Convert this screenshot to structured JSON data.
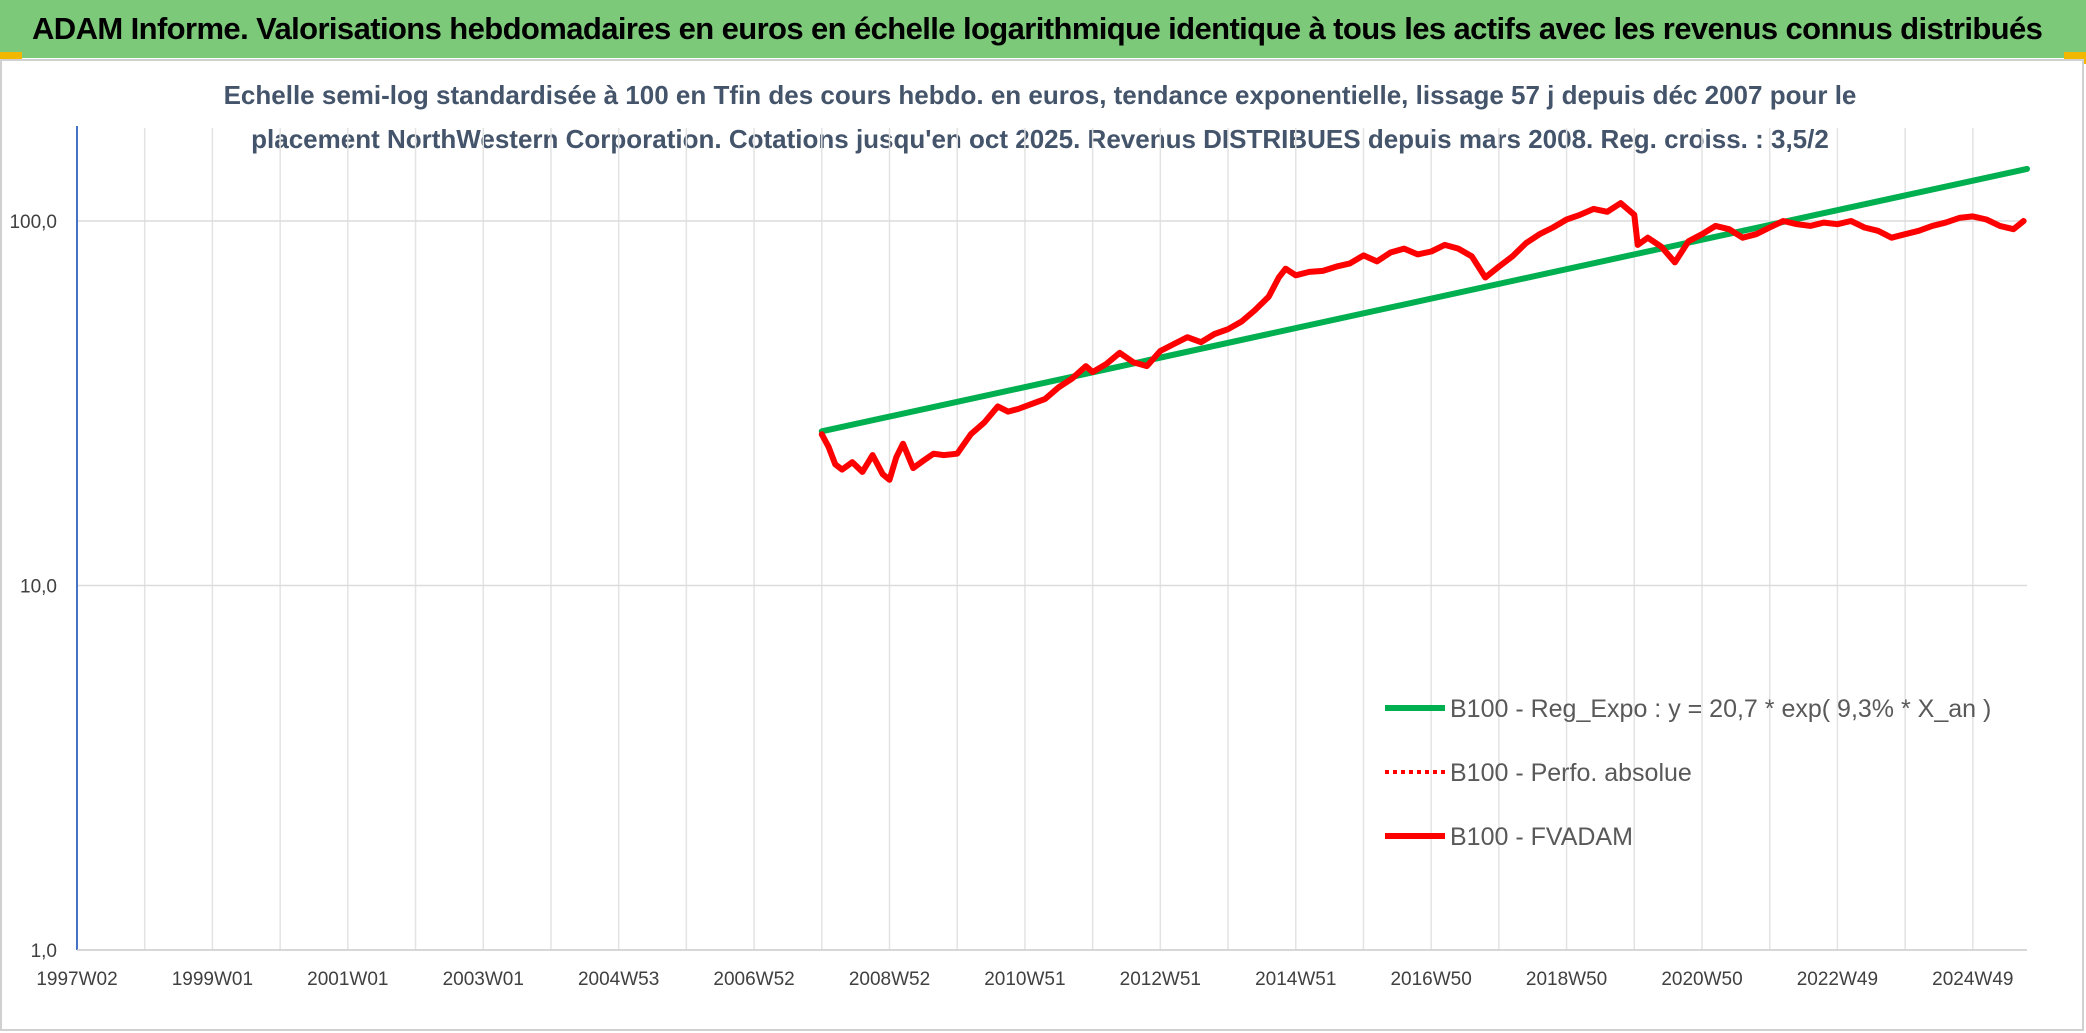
{
  "header": {
    "title": "ADAM Informe. Valorisations hebdomadaires en euros en échelle logarithmique identique à tous les actifs avec les revenus connus distribués",
    "background": "#7dc97a"
  },
  "chart_data": {
    "type": "line",
    "title_lines": [
      "Echelle semi-log standardisée à 100 en Tfin des cours hebdo. en euros, tendance exponentielle, lissage 57 j depuis déc 2007 pour le",
      "placement NorthWestern Corporation. Cotations jusqu'en oct 2025. Revenus DISTRIBUES depuis mars 2008. Reg. croiss. : 3,5/2"
    ],
    "y_scale": "log",
    "ylim": [
      1,
      180
    ],
    "y_ticks": [
      {
        "value": 1,
        "label": "1,0"
      },
      {
        "value": 10,
        "label": "10,0"
      },
      {
        "value": 100,
        "label": "100,0"
      }
    ],
    "x_ticks": [
      "1997W02",
      "1999W01",
      "2001W01",
      "2003W01",
      "2004W53",
      "2006W52",
      "2008W52",
      "2010W51",
      "2012W51",
      "2014W51",
      "2016W50",
      "2018W50",
      "2020W50",
      "2022W49",
      "2024W49"
    ],
    "x_tick_years": [
      1997.0,
      1999.0,
      2001.0,
      2003.0,
      2005.0,
      2007.0,
      2009.0,
      2011.0,
      2013.0,
      2015.0,
      2017.0,
      2019.0,
      2021.0,
      2023.0,
      2025.0
    ],
    "xlim": [
      1997.0,
      2025.8
    ],
    "grid": true,
    "legend_position": "bottom-right",
    "series": [
      {
        "name": "B100 - Reg_Expo : y = 20,7 * exp( 9,3% *  X_an )",
        "color": "#00b050",
        "style": "solid",
        "x": [
          2008.0,
          2025.8
        ],
        "y": [
          26.5,
          139
        ]
      },
      {
        "name": "B100 - Perfo. absolue",
        "color": "#ff0000",
        "style": "dotted",
        "x": [],
        "y": []
      },
      {
        "name": "B100 - FVADAM",
        "color": "#ff0000",
        "style": "solid",
        "x": [
          2008.0,
          2008.1,
          2008.2,
          2008.3,
          2008.45,
          2008.6,
          2008.75,
          2008.9,
          2009.0,
          2009.1,
          2009.2,
          2009.35,
          2009.5,
          2009.65,
          2009.8,
          2010.0,
          2010.2,
          2010.4,
          2010.6,
          2010.75,
          2010.9,
          2011.1,
          2011.3,
          2011.5,
          2011.7,
          2011.9,
          2012.0,
          2012.2,
          2012.4,
          2012.6,
          2012.8,
          2013.0,
          2013.2,
          2013.4,
          2013.6,
          2013.8,
          2014.0,
          2014.2,
          2014.4,
          2014.6,
          2014.75,
          2014.85,
          2015.0,
          2015.2,
          2015.4,
          2015.6,
          2015.8,
          2016.0,
          2016.2,
          2016.4,
          2016.6,
          2016.8,
          2017.0,
          2017.2,
          2017.4,
          2017.6,
          2017.8,
          2018.0,
          2018.2,
          2018.4,
          2018.6,
          2018.8,
          2019.0,
          2019.2,
          2019.4,
          2019.6,
          2019.8,
          2020.0,
          2020.05,
          2020.2,
          2020.4,
          2020.6,
          2020.8,
          2021.0,
          2021.2,
          2021.4,
          2021.6,
          2021.8,
          2022.0,
          2022.2,
          2022.4,
          2022.6,
          2022.8,
          2023.0,
          2023.2,
          2023.4,
          2023.6,
          2023.8,
          2024.0,
          2024.2,
          2024.4,
          2024.6,
          2024.8,
          2025.0,
          2025.2,
          2025.4,
          2025.6,
          2025.75
        ],
        "y": [
          26.0,
          24.0,
          21.5,
          20.8,
          21.8,
          20.5,
          22.8,
          20.2,
          19.5,
          22.5,
          24.5,
          21.0,
          22.0,
          23.0,
          22.8,
          23.0,
          26.0,
          28.0,
          31.0,
          30.0,
          30.5,
          31.5,
          32.5,
          35.0,
          37.0,
          40.0,
          38.5,
          40.5,
          43.5,
          41.0,
          40.0,
          44.0,
          46.0,
          48.0,
          46.5,
          49.0,
          50.5,
          53.0,
          57.0,
          62.0,
          70.0,
          74.0,
          71.0,
          72.5,
          73.0,
          75.0,
          76.5,
          80.5,
          77.5,
          82.0,
          84.0,
          81.0,
          82.5,
          86.0,
          84.0,
          80.0,
          70.0,
          75.0,
          80.0,
          87.0,
          92.0,
          96.0,
          101.0,
          104.0,
          108.0,
          106.0,
          112.0,
          104.0,
          86.0,
          90.0,
          85.0,
          77.0,
          88.0,
          92.0,
          97.0,
          95.0,
          90.0,
          92.0,
          96.0,
          100.0,
          98.0,
          97.0,
          99.0,
          98.0,
          100.0,
          96.0,
          94.0,
          90.0,
          92.0,
          94.0,
          97.0,
          99.0,
          102.0,
          103.0,
          101.0,
          97.0,
          95.0,
          100.0
        ]
      }
    ]
  }
}
